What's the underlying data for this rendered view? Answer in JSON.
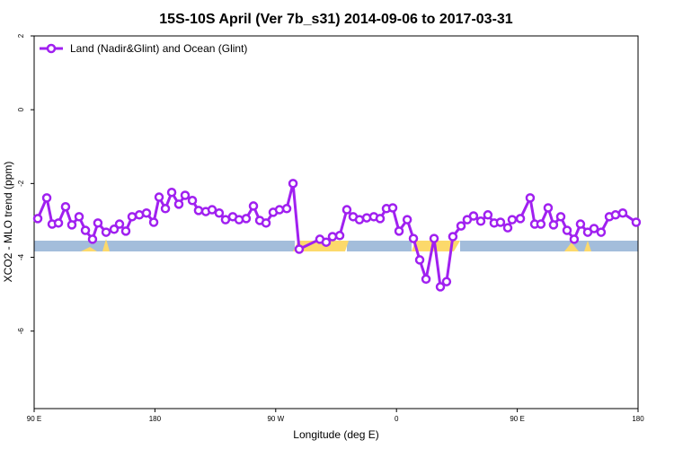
{
  "chart_data": {
    "type": "line",
    "title": "15S-10S April (Ver 7b_s31)   2014-09-06 to 2017-03-31",
    "x_label": "Longitude (deg E)",
    "y_label": "XCO2 - MLO trend (ppm)",
    "xlim": [
      90,
      540
    ],
    "ylim": [
      -8.1,
      2
    ],
    "xticks": [
      {
        "value": 90,
        "label": "90 E"
      },
      180,
      {
        "value": 270,
        "label": "90 W"
      },
      {
        "value": 360,
        "label": "0"
      },
      {
        "value": 450,
        "label": "90 E"
      },
      {
        "value": 540,
        "label": "180"
      }
    ],
    "yticks": [
      2,
      0,
      -2,
      -4,
      -6
    ],
    "legend": "top-left",
    "x": [
      92.7,
      99.4,
      103.4,
      108.1,
      113.4,
      118.1,
      123.5,
      128.2,
      133.5,
      137.5,
      143.6,
      149.6,
      153.6,
      158.3,
      163,
      168.4,
      173.7,
      179.1,
      183.1,
      187.8,
      192.5,
      197.8,
      202.5,
      207.9,
      212.5,
      217.9,
      222.6,
      227.9,
      232.6,
      238,
      242.7,
      248,
      253.4,
      258.1,
      262.8,
      268.1,
      272.8,
      278.2,
      282.9,
      287.5,
      302.9,
      307.6,
      312.3,
      317.7,
      323,
      327.7,
      332.4,
      337.8,
      343.1,
      347.8,
      352.5,
      357.2,
      361.9,
      368,
      372.6,
      377.3,
      382,
      388,
      392.7,
      397.3,
      402,
      408.1,
      412.7,
      417.4,
      422.8,
      428.1,
      432.8,
      437.5,
      442.9,
      446.2,
      452.3,
      459.6,
      463,
      467.6,
      473,
      477,
      482.4,
      487.1,
      492.4,
      497.1,
      502.5,
      507.2,
      512.5,
      518.6,
      523.2,
      528.6,
      538.6
    ],
    "series": [
      {
        "name": "Land (Nadir&Glint) and Ocean (Glint)",
        "color": "#a020f0",
        "values": [
          -2.95,
          -2.39,
          -3.1,
          -3.07,
          -2.63,
          -3.12,
          -2.9,
          -3.27,
          -3.51,
          -3.07,
          -3.32,
          -3.24,
          -3.1,
          -3.29,
          -2.9,
          -2.85,
          -2.8,
          -3.05,
          -2.37,
          -2.68,
          -2.24,
          -2.56,
          -2.32,
          -2.46,
          -2.73,
          -2.76,
          -2.71,
          -2.8,
          -2.98,
          -2.9,
          -2.98,
          -2.95,
          -2.61,
          -3.0,
          -3.07,
          -2.78,
          -2.71,
          -2.68,
          -2.0,
          -3.78,
          -3.51,
          -3.59,
          -3.44,
          -3.41,
          -2.71,
          -2.9,
          -2.98,
          -2.93,
          -2.9,
          -2.95,
          -2.68,
          -2.66,
          -3.29,
          -2.98,
          -3.49,
          -4.07,
          -4.59,
          -3.49,
          -4.8,
          -4.66,
          -3.44,
          -3.15,
          -2.98,
          -2.88,
          -3.02,
          -2.85,
          -3.07,
          -3.05,
          -3.2,
          -2.98,
          -2.95,
          -2.39,
          -3.1,
          -3.1,
          -2.66,
          -3.12,
          -2.9,
          -3.27,
          -3.51,
          -3.1,
          -3.32,
          -3.22,
          -3.32,
          -2.9,
          -2.85,
          -2.8,
          -3.05
        ]
      }
    ]
  }
}
